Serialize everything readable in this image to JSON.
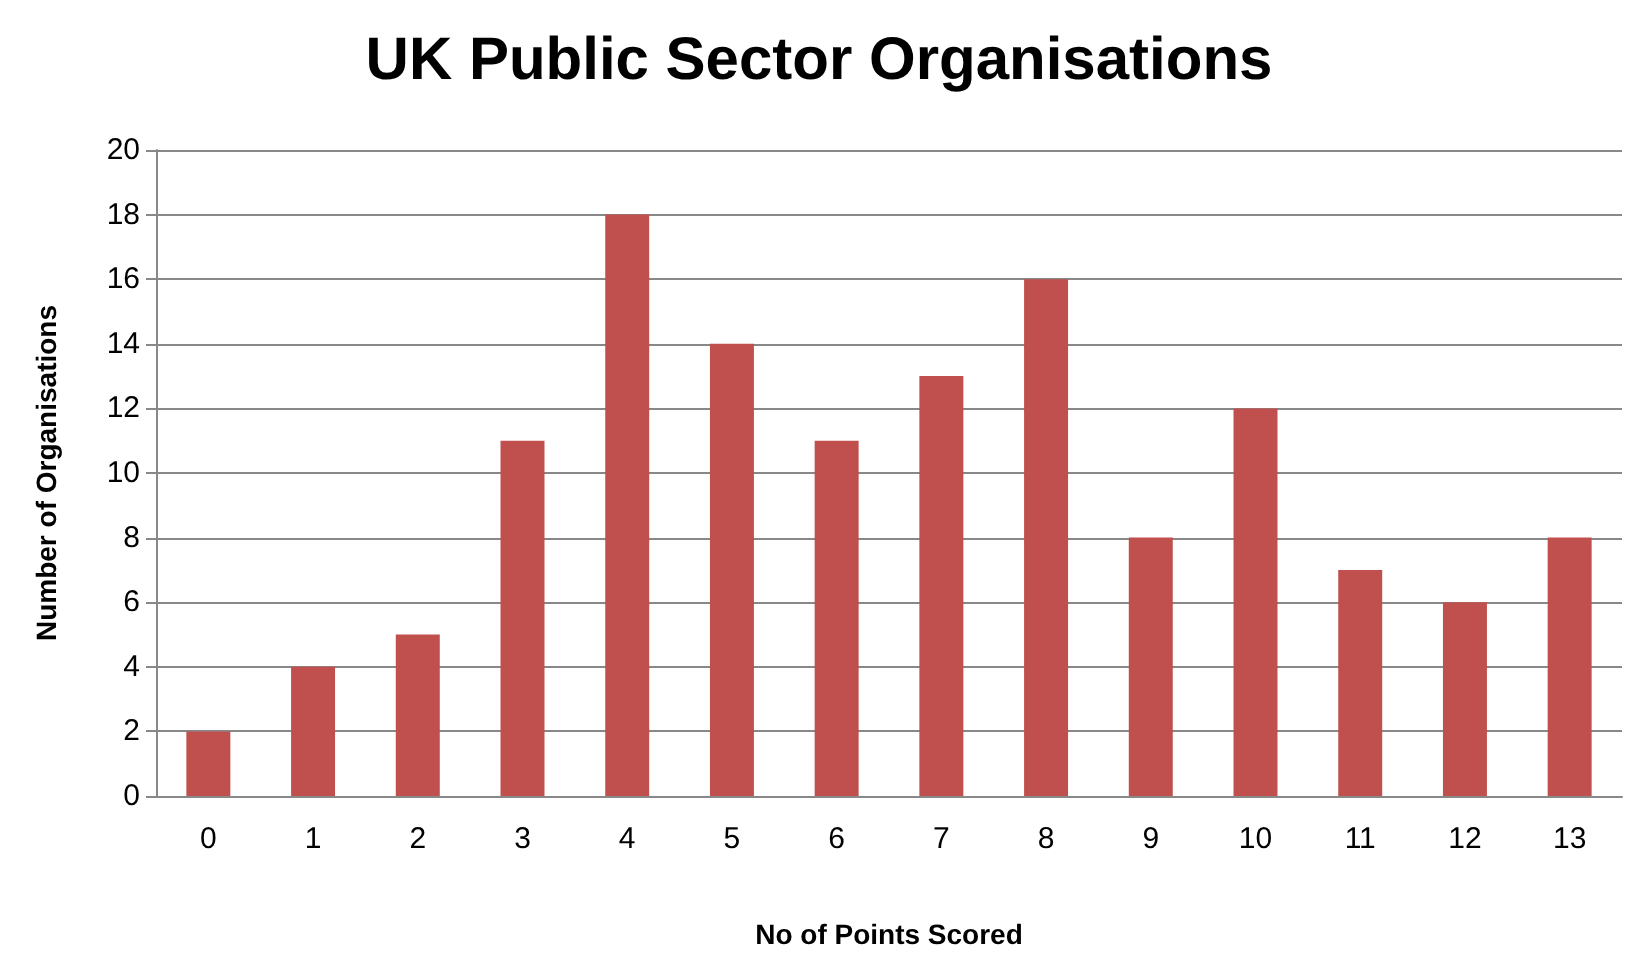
{
  "chart_data": {
    "type": "bar",
    "title": "UK Public Sector Organisations",
    "xlabel": "No of Points Scored",
    "ylabel": "Number of Organisations",
    "categories": [
      "0",
      "1",
      "2",
      "3",
      "4",
      "5",
      "6",
      "7",
      "8",
      "9",
      "10",
      "11",
      "12",
      "13"
    ],
    "values": [
      2,
      4,
      5,
      11,
      18,
      14,
      11,
      13,
      16,
      8,
      12,
      7,
      6,
      8
    ],
    "color": "#c0504d",
    "ylim": [
      0,
      20
    ],
    "yticks": [
      0,
      2,
      4,
      6,
      8,
      10,
      12,
      14,
      16,
      18,
      20
    ],
    "grid": true
  }
}
